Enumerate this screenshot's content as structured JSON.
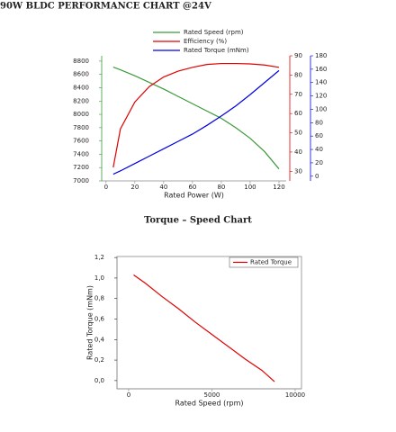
{
  "chart_data": [
    {
      "type": "line",
      "title": "90W BLDC PERFORMANCE CHART @24V",
      "x_label": "Rated Power (W)",
      "x": [
        5,
        10,
        20,
        30,
        40,
        50,
        60,
        70,
        80,
        90,
        100,
        110,
        120
      ],
      "xlim": [
        -3,
        125
      ],
      "xticks": [
        0,
        20,
        40,
        60,
        80,
        100,
        120
      ],
      "ylim": [
        7000,
        8880
      ],
      "yticks": [
        7000,
        7200,
        7400,
        7600,
        7800,
        8000,
        8200,
        8400,
        8600,
        8800
      ],
      "y2lim": [
        25,
        90
      ],
      "y2ticks": [
        30,
        40,
        50,
        60,
        70,
        80,
        90
      ],
      "y3lim": [
        -7,
        180
      ],
      "y3ticks": [
        0,
        20,
        40,
        60,
        80,
        100,
        120,
        140,
        160,
        180
      ],
      "legend": "top",
      "series": [
        {
          "name": "Rated Speed (rpm)",
          "color": "#3a9a3a",
          "axis": "y",
          "values": [
            8710,
            8670,
            8580,
            8480,
            8380,
            8270,
            8160,
            8050,
            7940,
            7800,
            7640,
            7440,
            7180
          ]
        },
        {
          "name": "Efficiency (%)",
          "color": "#e00000",
          "axis": "y2",
          "values": [
            32,
            52,
            66,
            74,
            79,
            82,
            84,
            85.5,
            86,
            86,
            85.8,
            85.2,
            84
          ]
        },
        {
          "name": "Rated Torque (mNm)",
          "color": "#0000e0",
          "axis": "y3",
          "values": [
            3,
            8,
            19,
            30,
            41,
            52,
            63,
            76,
            90,
            105,
            122,
            140,
            158
          ]
        }
      ]
    },
    {
      "type": "line",
      "title": "Torque – Speed Chart",
      "x_label": "Rated Speed (rpm)",
      "y_label": "Rated Torque (mNm)",
      "x": [
        300,
        1000,
        2000,
        3000,
        4000,
        5000,
        6000,
        7000,
        8000,
        8760
      ],
      "xlim": [
        -700,
        10380
      ],
      "xticks": [
        0,
        5000,
        10000
      ],
      "ylim": [
        -0.08,
        1.21
      ],
      "yticks": [
        {
          "value": 0,
          "label": "0,0"
        },
        {
          "value": 0.2,
          "label": "0,2"
        },
        {
          "value": 0.4,
          "label": "0,4"
        },
        {
          "value": 0.6,
          "label": "0,6"
        },
        {
          "value": 0.8,
          "label": "0,8"
        },
        {
          "value": 1.0,
          "label": "1,0"
        },
        {
          "value": 1.2,
          "label": "1,2"
        }
      ],
      "legend": "upper right",
      "series": [
        {
          "name": "Rated Torque",
          "color": "#e00000",
          "values": [
            1.03,
            0.95,
            0.82,
            0.7,
            0.57,
            0.45,
            0.33,
            0.21,
            0.1,
            -0.01
          ]
        }
      ]
    }
  ]
}
